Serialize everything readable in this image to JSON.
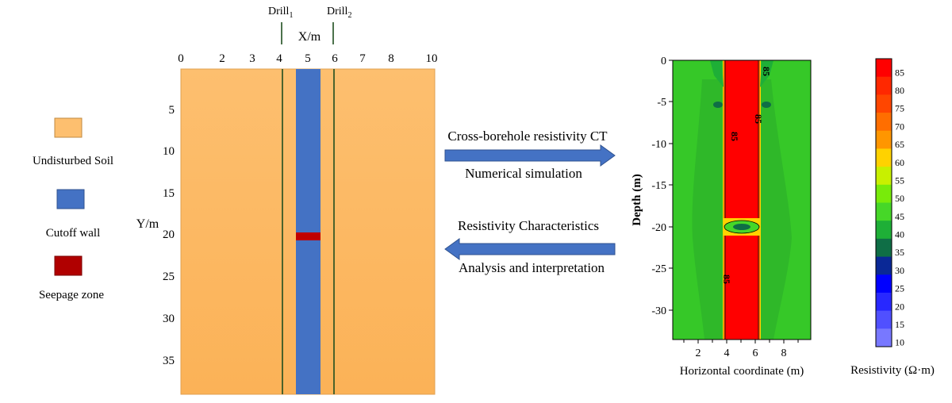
{
  "model": {
    "x_axis": {
      "label": "X/m",
      "ticks": [
        "0",
        "2",
        "3",
        "4",
        "5",
        "6",
        "7",
        "8",
        "10"
      ]
    },
    "y_axis": {
      "label": "Y/m",
      "ticks": [
        "5",
        "10",
        "15",
        "20",
        "25",
        "30",
        "35"
      ]
    },
    "drills": [
      {
        "base": "Drill",
        "sub": "1"
      },
      {
        "base": "Drill",
        "sub": "2"
      }
    ],
    "colors": {
      "soil": "#FDBF6F",
      "wall": "#4472C4",
      "seepage": "#C00000"
    }
  },
  "legend": {
    "items": [
      {
        "label": "Undisturbed Soil",
        "color": "#FDBF6F"
      },
      {
        "label": "Cutoff wall",
        "color": "#4472C4"
      },
      {
        "label": "Seepage zone",
        "color": "#C00000"
      }
    ]
  },
  "arrows": {
    "forward": {
      "top_label": "Cross-borehole resistivity CT",
      "bottom_label": "Numerical simulation",
      "color": "#4472C4"
    },
    "backward": {
      "top_label": "Resistivity Characteristics",
      "bottom_label": "Analysis and interpretation",
      "color": "#4472C4"
    }
  },
  "inversion": {
    "x_axis": {
      "label": "Horizontal coordinate (m)",
      "ticks": [
        "2",
        "4",
        "6",
        "8"
      ]
    },
    "y_axis": {
      "label": "Depth (m)",
      "ticks": [
        "0",
        "-5",
        "-10",
        "-15",
        "-20",
        "-25",
        "-30"
      ]
    },
    "contour_labels": [
      "85",
      "85",
      "85",
      "85"
    ],
    "colorbar": {
      "label": "Resistivity (Ω·m)",
      "levels": [
        {
          "value": "85",
          "color": "#FF0000"
        },
        {
          "value": "80",
          "color": "#FF2800"
        },
        {
          "value": "75",
          "color": "#FF4600"
        },
        {
          "value": "70",
          "color": "#FF6E00"
        },
        {
          "value": "65",
          "color": "#FF9600"
        },
        {
          "value": "60",
          "color": "#FFD200"
        },
        {
          "value": "55",
          "color": "#C8F000"
        },
        {
          "value": "50",
          "color": "#78EB0A"
        },
        {
          "value": "45",
          "color": "#46D728"
        },
        {
          "value": "40",
          "color": "#1EAF37"
        },
        {
          "value": "35",
          "color": "#0F6E46"
        },
        {
          "value": "30",
          "color": "#0A2896"
        },
        {
          "value": "25",
          "color": "#0000FF"
        },
        {
          "value": "20",
          "color": "#2828FF"
        },
        {
          "value": "15",
          "color": "#5050FF"
        },
        {
          "value": "10",
          "color": "#7878FF"
        }
      ]
    }
  }
}
